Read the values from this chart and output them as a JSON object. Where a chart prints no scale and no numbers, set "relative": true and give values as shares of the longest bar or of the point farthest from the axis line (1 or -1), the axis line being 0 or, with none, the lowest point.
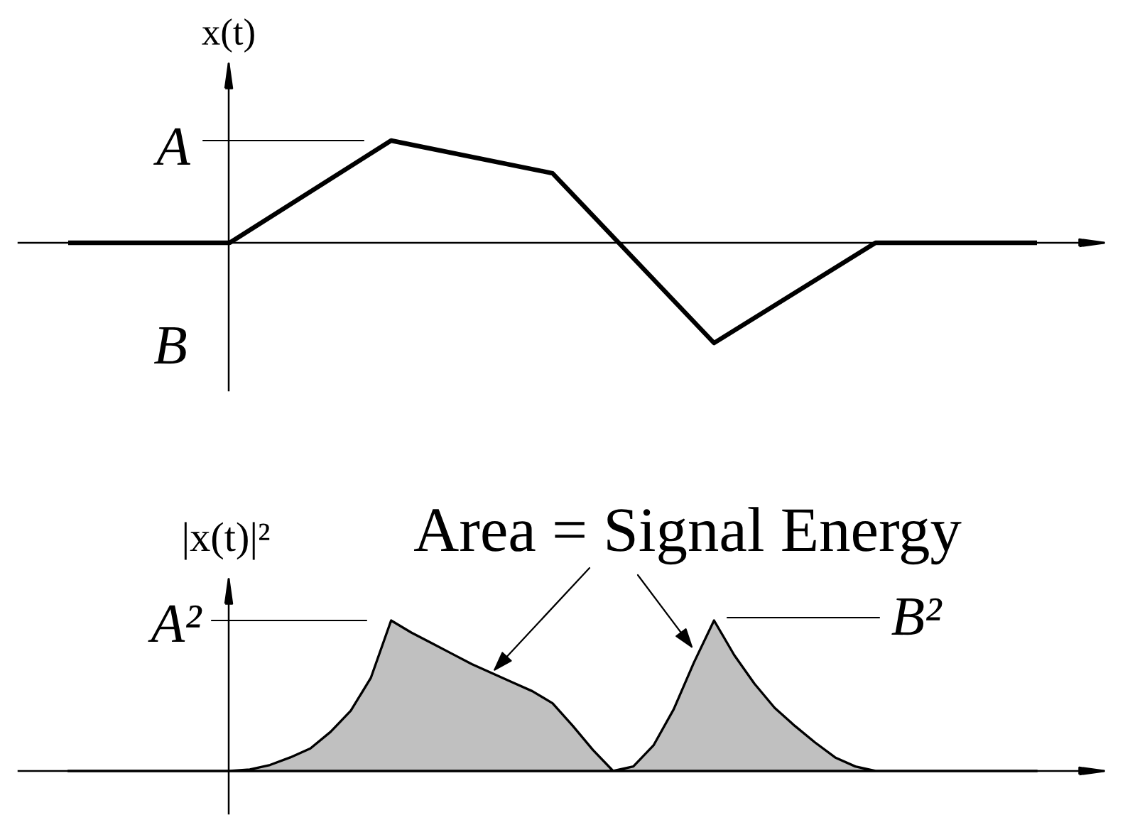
{
  "chart_data": [
    {
      "type": "line",
      "ylabel": "x(t)",
      "relative": true,
      "categories": [
        null,
        null,
        null,
        null,
        null,
        null,
        null
      ],
      "series": [
        {
          "color": "#000000",
          "values": [
            0,
            0,
            1,
            0.68,
            -0.98,
            0,
            0
          ]
        }
      ],
      "annotations": [
        "A",
        "B"
      ]
    },
    {
      "type": "area",
      "ylabel": "|x(t)|²",
      "relative": true,
      "categories": [
        null,
        null,
        null,
        null,
        null,
        null,
        null,
        null,
        null,
        null,
        null,
        null,
        null,
        null,
        null,
        null,
        null,
        null,
        null,
        null,
        null,
        null,
        null,
        null,
        null,
        null,
        null,
        null,
        null,
        null,
        null,
        null,
        null,
        null,
        null,
        null,
        null,
        null,
        null,
        null,
        null,
        null,
        null,
        null,
        null,
        null,
        null,
        null,
        null
      ],
      "series": [
        {
          "color": "#c0c0c0",
          "values": [
            0,
            0,
            0,
            0,
            0,
            0,
            0,
            0,
            0,
            0.01,
            0.04,
            0.09,
            0.15,
            0.26,
            0.4,
            0.62,
            1,
            0.92,
            0.85,
            0.78,
            0.71,
            0.65,
            0.59,
            0.53,
            0.45,
            0.3,
            0.14,
            0,
            0.03,
            0.17,
            0.41,
            0.72,
            1,
            0.77,
            0.58,
            0.42,
            0.3,
            0.19,
            0.09,
            0.03,
            0,
            0,
            0,
            0,
            0,
            0,
            0,
            0,
            0
          ]
        }
      ],
      "annotations": [
        "A²",
        "B²",
        "Area = Signal Energy"
      ]
    }
  ]
}
